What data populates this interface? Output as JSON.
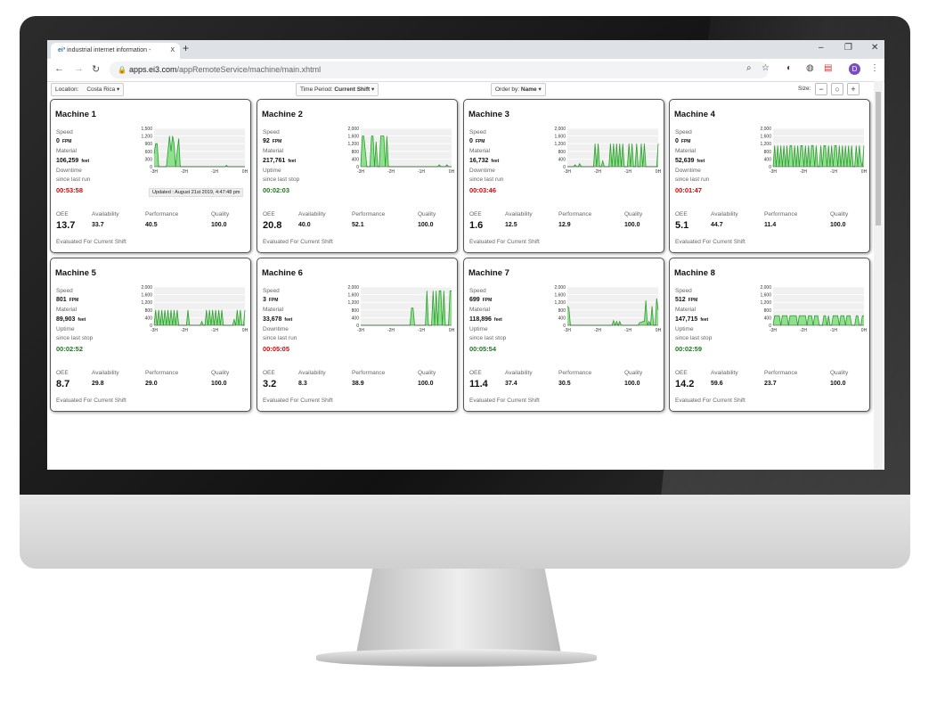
{
  "browser": {
    "tab_title": "industrial internet information - ",
    "tab_close": "X",
    "new_tab": "+",
    "url_host": "apps.ei3.com",
    "url_path": "/appRemoteService/machine/main.xhtml",
    "profile_initial": "D"
  },
  "toolbar": {
    "location_label": "Location:",
    "location_value": "Costa Rica",
    "time_period_label": "Time Period:",
    "time_period_value": "Current Shift",
    "order_label": "Order by:",
    "order_value": "Name",
    "size_label": "Size:",
    "size_minus": "−",
    "size_reset": "○",
    "size_plus": "+"
  },
  "colors": {
    "line": "#2e9e2e",
    "fill": "#8fe08f",
    "uptime": "#1a7a1a",
    "downtime": "#e00000"
  },
  "labels": {
    "speed": "Speed",
    "material": "Material",
    "fpm": "FPM",
    "feet": "feet",
    "oee": "OEE",
    "availability": "Availability",
    "performance": "Performance",
    "quality": "Quality",
    "evaluated": "Evaluated For Current Shift",
    "updated": "Updated : August 21st 2019, 4:47:48 pm"
  },
  "chart_x_ticks": [
    "-3H",
    "-2H",
    "-1H",
    "0H"
  ],
  "machines": [
    {
      "name": "Machine 1",
      "speed": "0",
      "material": "106,259",
      "state": "Downtime",
      "since": "since last run",
      "time": "00:53:58",
      "oee": "13.7",
      "availability": "33.7",
      "performance": "40.5",
      "quality": "100.0",
      "y_ticks": [
        "0",
        "300",
        "600",
        "900",
        "1,200",
        "1,500"
      ],
      "ymax": 1500,
      "series": [
        500,
        900,
        900,
        0,
        0,
        0,
        0,
        0,
        0,
        600,
        1200,
        600,
        1200,
        900,
        0,
        600,
        1100,
        0,
        0,
        0,
        0,
        0,
        0,
        0,
        0,
        0,
        0,
        0,
        0,
        0,
        0,
        0,
        0,
        0,
        0,
        0,
        0,
        0,
        0,
        0,
        0,
        0,
        0,
        0,
        0,
        0,
        0,
        50,
        0,
        0,
        0,
        0,
        0,
        0,
        0,
        0,
        0,
        0,
        0,
        0
      ]
    },
    {
      "name": "Machine 2",
      "speed": "92",
      "material": "217,761",
      "state": "Uptime",
      "since": "since last stop",
      "time": "00:02:03",
      "oee": "20.8",
      "availability": "40.0",
      "performance": "52.1",
      "quality": "100.0",
      "y_ticks": [
        "0",
        "400",
        "800",
        "1,200",
        "1,600",
        "2,000"
      ],
      "ymax": 2000,
      "series": [
        0,
        1600,
        1600,
        800,
        0,
        0,
        0,
        1600,
        1600,
        0,
        1300,
        0,
        0,
        1600,
        1600,
        1600,
        0,
        1600,
        0,
        0,
        0,
        0,
        0,
        0,
        0,
        0,
        0,
        0,
        0,
        0,
        0,
        0,
        0,
        0,
        0,
        0,
        0,
        0,
        0,
        0,
        0,
        0,
        0,
        0,
        0,
        0,
        0,
        0,
        0,
        0,
        0,
        100,
        0,
        0,
        0,
        0,
        100,
        0,
        0,
        0
      ]
    },
    {
      "name": "Machine 3",
      "speed": "0",
      "material": "16,732",
      "state": "Downtime",
      "since": "since last run",
      "time": "00:03:46",
      "oee": "1.6",
      "availability": "12.5",
      "performance": "12.9",
      "quality": "100.0",
      "y_ticks": [
        "0",
        "400",
        "800",
        "1,200",
        "1,600",
        "2,000"
      ],
      "ymax": 2000,
      "series": [
        0,
        0,
        0,
        0,
        0,
        100,
        0,
        0,
        150,
        0,
        0,
        0,
        0,
        0,
        0,
        0,
        0,
        0,
        1200,
        0,
        1200,
        0,
        0,
        300,
        0,
        0,
        0,
        0,
        1200,
        0,
        1200,
        0,
        1200,
        0,
        1200,
        0,
        1200,
        0,
        0,
        0,
        1200,
        0,
        1200,
        0,
        0,
        1200,
        0,
        0,
        1200,
        0,
        1200,
        0,
        0,
        0,
        0,
        0,
        0,
        0,
        0,
        1200
      ]
    },
    {
      "name": "Machine 4",
      "speed": "0",
      "material": "52,639",
      "state": "Downtime",
      "since": "since last run",
      "time": "00:01:47",
      "oee": "5.1",
      "availability": "44.7",
      "performance": "11.4",
      "quality": "100.0",
      "y_ticks": [
        "0",
        "400",
        "800",
        "1,200",
        "1,600",
        "2,000"
      ],
      "ymax": 2000,
      "series": [
        0,
        1100,
        0,
        1100,
        0,
        1100,
        0,
        1100,
        0,
        1100,
        0,
        1100,
        1100,
        0,
        1100,
        0,
        1100,
        0,
        1100,
        1100,
        0,
        1100,
        0,
        1100,
        0,
        1100,
        1100,
        0,
        1100,
        0,
        0,
        1100,
        0,
        1100,
        1100,
        0,
        1100,
        0,
        1100,
        0,
        1100,
        1100,
        0,
        1100,
        0,
        1100,
        0,
        1100,
        0,
        1100,
        0,
        1100,
        0,
        0,
        1100,
        0,
        1100,
        300,
        0,
        1100
      ]
    },
    {
      "name": "Machine 5",
      "speed": "801",
      "material": "89,903",
      "state": "Uptime",
      "since": "since last stop",
      "time": "00:02:52",
      "oee": "8.7",
      "availability": "29.8",
      "performance": "29.0",
      "quality": "100.0",
      "y_ticks": [
        "0",
        "400",
        "800",
        "1,200",
        "1,600",
        "2,000"
      ],
      "ymax": 2000,
      "series": [
        0,
        800,
        0,
        800,
        0,
        800,
        0,
        800,
        0,
        800,
        0,
        800,
        0,
        800,
        0,
        800,
        0,
        0,
        0,
        0,
        0,
        0,
        800,
        0,
        0,
        0,
        0,
        0,
        0,
        0,
        0,
        200,
        0,
        0,
        800,
        0,
        800,
        0,
        800,
        0,
        800,
        0,
        800,
        0,
        800,
        0,
        0,
        0,
        0,
        0,
        0,
        0,
        300,
        0,
        800,
        0,
        800,
        0,
        0,
        800
      ]
    },
    {
      "name": "Machine 6",
      "speed": "3",
      "material": "33,678",
      "state": "Downtime",
      "since": "since last run",
      "time": "00:05:05",
      "oee": "3.2",
      "availability": "8.3",
      "performance": "38.9",
      "quality": "100.0",
      "y_ticks": [
        "0",
        "400",
        "800",
        "1,200",
        "1,600",
        "2,000"
      ],
      "ymax": 2000,
      "series": [
        0,
        0,
        0,
        0,
        0,
        0,
        0,
        0,
        0,
        0,
        0,
        0,
        0,
        0,
        0,
        0,
        0,
        0,
        0,
        0,
        0,
        0,
        0,
        0,
        0,
        0,
        0,
        0,
        0,
        0,
        0,
        0,
        0,
        900,
        900,
        0,
        0,
        0,
        0,
        0,
        0,
        0,
        0,
        1800,
        0,
        0,
        0,
        1800,
        0,
        1800,
        0,
        1800,
        1800,
        0,
        1800,
        0,
        0,
        0,
        1800,
        1800
      ]
    },
    {
      "name": "Machine 7",
      "speed": "699",
      "material": "118,896",
      "state": "Uptime",
      "since": "since last stop",
      "time": "00:05:54",
      "oee": "11.4",
      "availability": "37.4",
      "performance": "30.5",
      "quality": "100.0",
      "y_ticks": [
        "0",
        "400",
        "800",
        "1,200",
        "1,600",
        "2,000"
      ],
      "ymax": 2000,
      "series": [
        1000,
        900,
        0,
        0,
        0,
        0,
        0,
        0,
        0,
        0,
        0,
        0,
        0,
        0,
        0,
        0,
        0,
        0,
        0,
        0,
        0,
        0,
        0,
        0,
        0,
        0,
        0,
        0,
        0,
        0,
        250,
        0,
        200,
        0,
        200,
        0,
        0,
        0,
        0,
        0,
        0,
        0,
        0,
        0,
        0,
        0,
        0,
        150,
        150,
        200,
        200,
        1300,
        0,
        200,
        0,
        1000,
        0,
        0,
        1400,
        800
      ]
    },
    {
      "name": "Machine 8",
      "speed": "512",
      "material": "147,715",
      "state": "Uptime",
      "since": "since last stop",
      "time": "00:02:59",
      "oee": "14.2",
      "availability": "59.6",
      "performance": "23.7",
      "quality": "100.0",
      "y_ticks": [
        "0",
        "400",
        "800",
        "1,200",
        "1,600",
        "2,000"
      ],
      "ymax": 2000,
      "series": [
        0,
        500,
        500,
        500,
        500,
        0,
        500,
        500,
        500,
        500,
        0,
        500,
        500,
        500,
        500,
        500,
        0,
        500,
        500,
        500,
        500,
        500,
        0,
        500,
        500,
        500,
        0,
        500,
        500,
        500,
        0,
        0,
        0,
        500,
        500,
        0,
        500,
        0,
        0,
        500,
        500,
        500,
        500,
        0,
        500,
        500,
        500,
        0,
        500,
        500,
        500,
        0,
        0,
        0,
        500,
        500,
        0,
        0,
        500,
        500
      ]
    }
  ]
}
